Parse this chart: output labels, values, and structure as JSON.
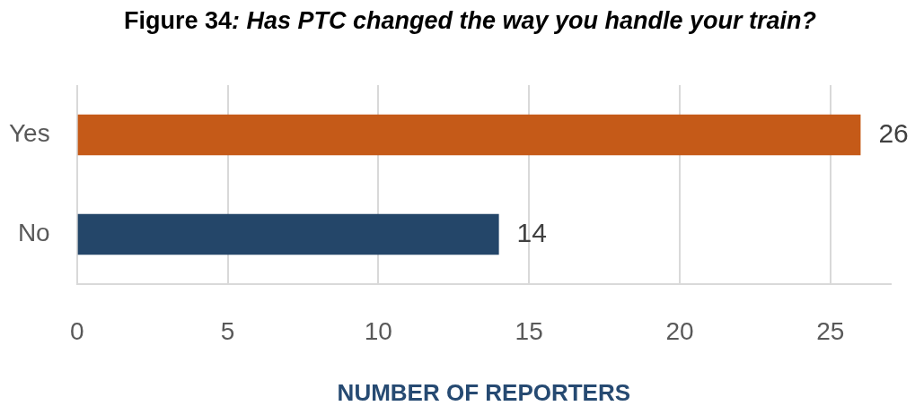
{
  "chart_data": {
    "type": "bar",
    "orientation": "horizontal",
    "title": "Figure 34: Has PTC changed the way you handle your train?",
    "xlabel": "NUMBER OF REPORTERS",
    "categories": [
      "Yes",
      "No"
    ],
    "values": [
      26,
      14
    ],
    "colors": [
      "#c55a18",
      "#244669"
    ],
    "xlim": [
      0,
      27
    ],
    "xticks": [
      0,
      5,
      10,
      15,
      20,
      25
    ],
    "grid": "x",
    "data_labels": true
  }
}
